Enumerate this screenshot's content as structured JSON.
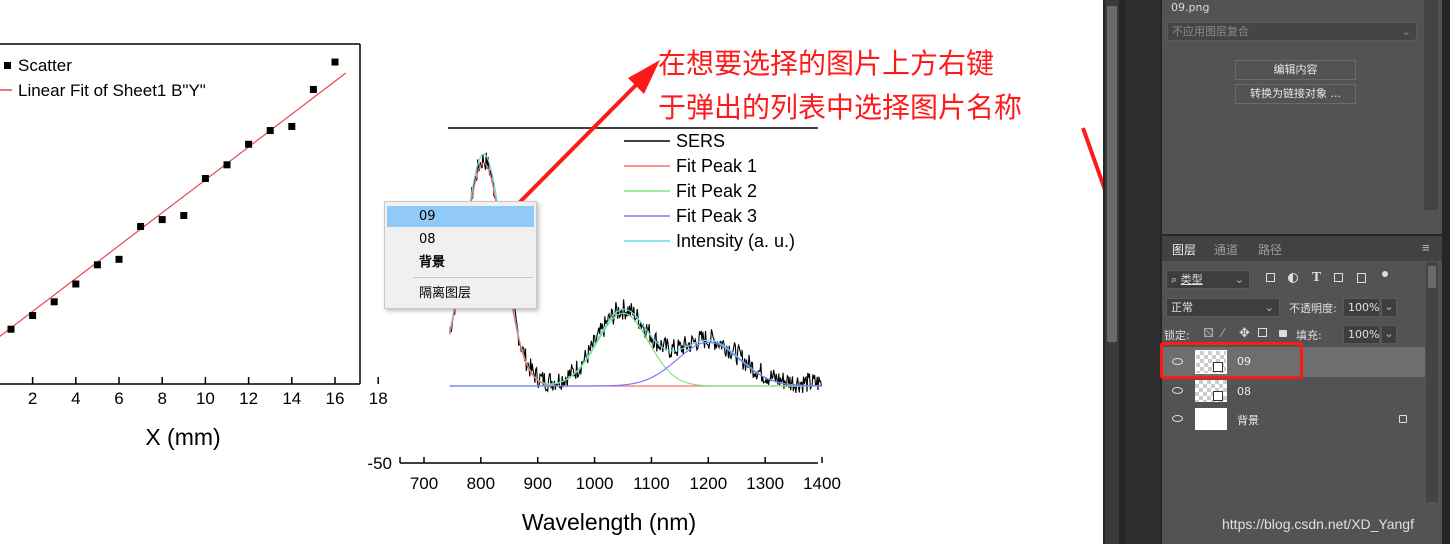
{
  "left_chart": {
    "legend": {
      "scatter": "Scatter",
      "fit": "Linear Fit of Sheet1 B\"Y\""
    },
    "x_ticks": [
      "2",
      "4",
      "6",
      "8",
      "10",
      "12",
      "14",
      "16",
      "18"
    ],
    "xlabel": "X (mm)",
    "colors": {
      "fit": "#e8474b",
      "points": "#000000"
    }
  },
  "right_chart": {
    "legend": [
      "SERS",
      "Fit Peak 1",
      "Fit Peak 2",
      "Fit Peak 3",
      "Intensity (a. u.)"
    ],
    "legend_colors": [
      "#000000",
      "#ff6e6e",
      "#7ee87e",
      "#7a7aff",
      "#66e0e0"
    ],
    "x_ticks": [
      "700",
      "800",
      "900",
      "1000",
      "1100",
      "1200",
      "1300",
      "1400"
    ],
    "y_tick": "-50",
    "xlabel": "Wavelength (nm)"
  },
  "chart_data": [
    {
      "type": "scatter",
      "x": [
        1,
        2,
        3,
        4,
        5,
        6,
        7,
        8,
        9,
        10,
        11,
        12,
        13,
        14,
        15,
        16
      ],
      "y": [
        5.5,
        6.5,
        7.5,
        8.8,
        10.2,
        10.6,
        13.0,
        13.5,
        13.8,
        16.5,
        17.5,
        19.0,
        20.0,
        20.3,
        23.0,
        25.0
      ],
      "fit_line": {
        "slope": 1.2,
        "intercept": 4.4
      },
      "x_range": [
        0,
        18
      ],
      "xlabel": "X (mm)",
      "legend": [
        "Scatter",
        "Linear Fit of Sheet1 B\"Y\""
      ],
      "grid": false
    },
    {
      "type": "line",
      "x_range": [
        650,
        1400
      ],
      "xlabel": "Wavelength (nm)",
      "y_tick_visible": -50,
      "peaks": [
        {
          "name": "Fit Peak 1",
          "center": 805,
          "height": 230,
          "width": 35
        },
        {
          "name": "Fit Peak 2",
          "center": 1050,
          "height": 75,
          "width": 45
        },
        {
          "name": "Fit Peak 3",
          "center": 1200,
          "height": 45,
          "width": 55
        }
      ],
      "legend": [
        "SERS",
        "Fit Peak 1",
        "Fit Peak 2",
        "Fit Peak 3",
        "Intensity (a. u.)"
      ],
      "legend_placement": "top-right",
      "grid": false
    }
  ],
  "context_menu": {
    "items": [
      "09",
      "08",
      "背景"
    ],
    "separator_item": "隔离图层",
    "selected_index": 0
  },
  "annotation": {
    "line1": "在想要选择的图片上方右键",
    "line2": "于弹出的列表中选择图片名称",
    "color": "#ff1a1a"
  },
  "ps_panel": {
    "file_name": "09.png",
    "comp_select": "不应用图层复合",
    "edit_button": "编辑内容",
    "convert_button": "转换为链接对象 ...",
    "tabs": [
      "图层",
      "通道",
      "路径"
    ],
    "filter_label": "类型",
    "blend_mode": "正常",
    "opacity_label": "不透明度:",
    "opacity_value": "100%",
    "lock_label": "锁定:",
    "fill_label": "填充:",
    "fill_value": "100%",
    "layers": [
      {
        "name": "09",
        "selected": true
      },
      {
        "name": "08",
        "selected": false
      },
      {
        "name": "背景",
        "selected": false,
        "locked": true
      }
    ]
  },
  "watermark": "https://blog.csdn.net/XD_Yangf"
}
